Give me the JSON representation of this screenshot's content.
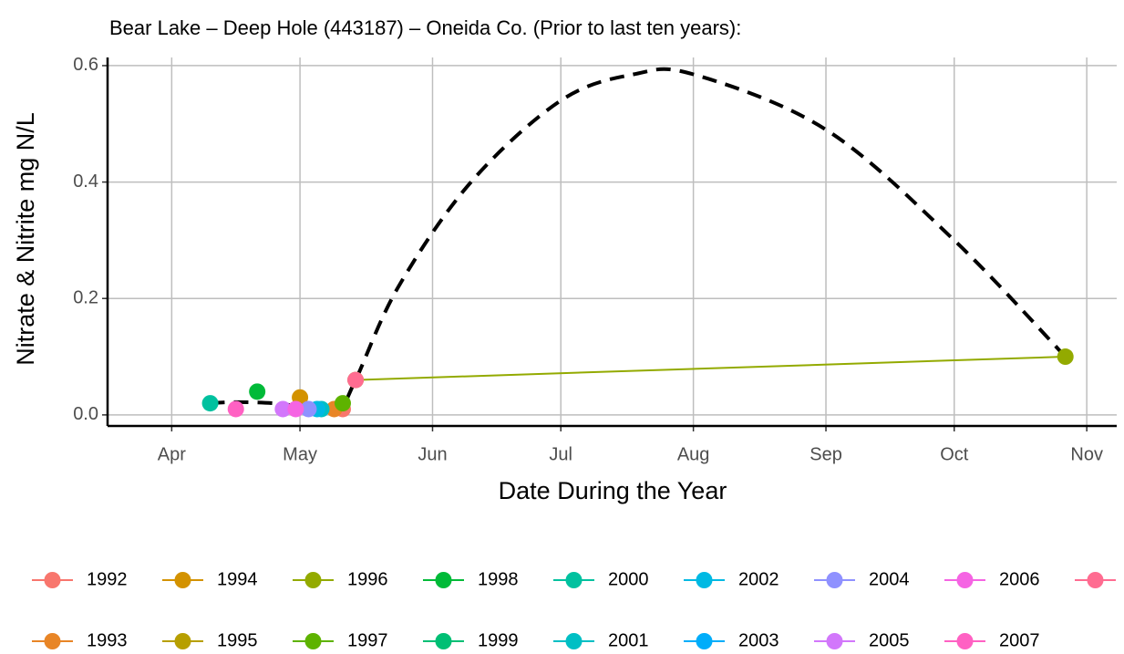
{
  "chart_data": {
    "type": "line",
    "title": "Bear Lake – Deep Hole (443187) – Oneida Co.  (Prior to last ten years):",
    "x_label": "Date During the Year",
    "y_label": "Nitrate & Nitrite mg N/L",
    "xlim": [
      76,
      312
    ],
    "xticks": [
      {
        "value": 91,
        "label": "Apr"
      },
      {
        "value": 121,
        "label": "May"
      },
      {
        "value": 152,
        "label": "Jun"
      },
      {
        "value": 182,
        "label": "Jul"
      },
      {
        "value": 213,
        "label": "Aug"
      },
      {
        "value": 244,
        "label": "Sep"
      },
      {
        "value": 274,
        "label": "Oct"
      },
      {
        "value": 305,
        "label": "Nov"
      }
    ],
    "ylim": [
      -0.019,
      0.614
    ],
    "yticks": [
      {
        "value": 0,
        "label": "0.0"
      },
      {
        "value": 0.2,
        "label": "0.2"
      },
      {
        "value": 0.4,
        "label": "0.4"
      },
      {
        "value": 0.6,
        "label": "0.6"
      }
    ],
    "grid": true,
    "legend": "bottom",
    "series": [
      {
        "name": "1992",
        "color": "#F8766D",
        "x": [
          131
        ],
        "values": [
          0.01
        ]
      },
      {
        "name": "1993",
        "color": "#E88526",
        "x": [
          129
        ],
        "values": [
          0.01
        ]
      },
      {
        "name": "1994",
        "color": "#D39200",
        "x": [
          121
        ],
        "values": [
          0.03
        ]
      },
      {
        "name": "1995",
        "color": "#B79F00",
        "x": [],
        "values": []
      },
      {
        "name": "1996",
        "color": "#93AA00",
        "x": [
          134,
          300
        ],
        "values": [
          0.06,
          0.1
        ]
      },
      {
        "name": "1997",
        "color": "#5EB300",
        "x": [
          131
        ],
        "values": [
          0.02
        ]
      },
      {
        "name": "1998",
        "color": "#00BA38",
        "x": [
          111
        ],
        "values": [
          0.04
        ]
      },
      {
        "name": "1999",
        "color": "#00BF74",
        "x": [],
        "values": []
      },
      {
        "name": "2000",
        "color": "#00C19F",
        "x": [
          100
        ],
        "values": [
          0.02
        ]
      },
      {
        "name": "2001",
        "color": "#00BFC4",
        "x": [
          126
        ],
        "values": [
          0.01
        ]
      },
      {
        "name": "2002",
        "color": "#00B9E3",
        "x": [
          125
        ],
        "values": [
          0.01
        ]
      },
      {
        "name": "2003",
        "color": "#00ADFA",
        "x": [],
        "values": []
      },
      {
        "name": "2004",
        "color": "#8F91FF",
        "x": [
          123
        ],
        "values": [
          0.01
        ]
      },
      {
        "name": "2005",
        "color": "#D277FB",
        "x": [
          117
        ],
        "values": [
          0.01
        ]
      },
      {
        "name": "2006",
        "color": "#F564E3",
        "x": [
          120
        ],
        "values": [
          0.01
        ]
      },
      {
        "name": "2007",
        "color": "#FF61C3",
        "x": [
          106
        ],
        "values": [
          0.01
        ]
      },
      {
        "name": null,
        "color": "#FF6C91",
        "x": [
          134
        ],
        "values": [
          0.06
        ]
      }
    ],
    "trend": {
      "color": "#000000",
      "x": [
        100,
        106,
        115,
        123,
        130,
        134,
        144,
        161,
        182,
        199,
        213,
        244,
        274,
        300
      ],
      "values": [
        0.02,
        0.022,
        0.02,
        0.013,
        0.01,
        0.06,
        0.22,
        0.4,
        0.54,
        0.585,
        0.585,
        0.49,
        0.3,
        0.1
      ]
    }
  }
}
